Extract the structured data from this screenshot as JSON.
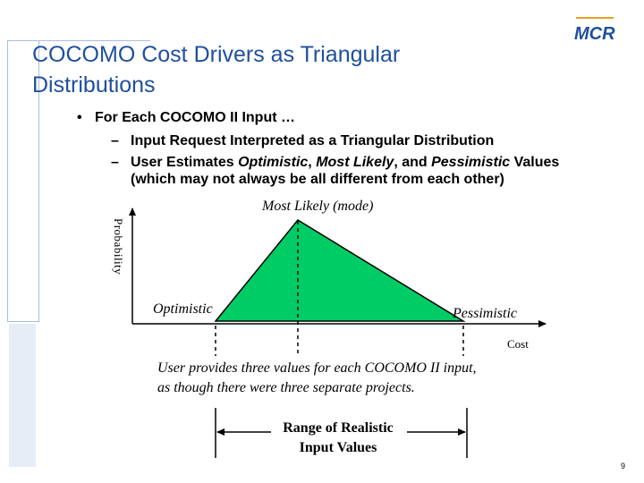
{
  "slide": {
    "title_line1": "COCOMO Cost Drivers as Triangular",
    "title_line2": "Distributions",
    "logo_text": "MCR",
    "page_number": "9"
  },
  "bullets": {
    "level1": "For Each COCOMO II Input …",
    "level2_1": "Input Request Interpreted as a Triangular Distribution",
    "level2_2_pre": "User Estimates ",
    "level2_2_optimistic": "Optimistic",
    "level2_2_comma": ", ",
    "level2_2_mostlikely": "Most Likely",
    "level2_2_and": ", and ",
    "level2_2_pessimistic": "Pessimistic",
    "level2_2_post": " Values",
    "level2_2_cont": "(which may not always be all different from each other)"
  },
  "diagram": {
    "y_axis_label": "Probability",
    "x_axis_label": "Cost",
    "mode_label": "Most Likely (mode)",
    "optimistic_label": "Optimistic",
    "pessimistic_label": "Pessimistic",
    "triangle_color": "#00cc66",
    "note_line1": "User provides three values for each COCOMO II input,",
    "note_line2": "as though there were three separate projects.",
    "range_line1": "Range of Realistic",
    "range_line2": "Input Values"
  },
  "colors": {
    "title": "#1f4f9e",
    "logo": "#1f4f9e",
    "logo_accent": "#e8a020"
  }
}
